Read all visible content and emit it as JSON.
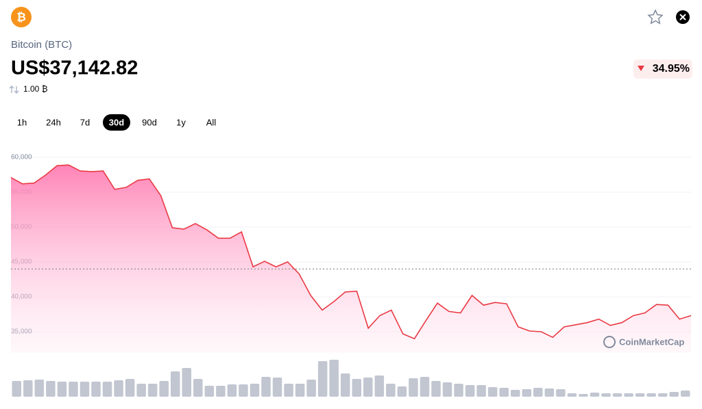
{
  "header": {
    "icon": "₿",
    "coin": "Bitcoin (BTC)",
    "price": "US$37,142.82",
    "amount": "1.00 ₿",
    "change": "34.95%"
  },
  "tabs": [
    "1h",
    "24h",
    "7d",
    "30d",
    "90d",
    "1y",
    "All"
  ],
  "active_tab": 3,
  "chart_data": {
    "type": "area",
    "watermark": "CoinMarketCap",
    "ylim": [
      32000,
      60000
    ],
    "yticks": [
      {
        "value": 35000,
        "label": "35,000"
      },
      {
        "value": 40000,
        "label": "40,000"
      },
      {
        "value": 45000,
        "label": "45,000"
      },
      {
        "value": 50000,
        "label": "50,000"
      },
      {
        "value": 55000,
        "label": "55,000"
      },
      {
        "value": 60000,
        "label": "60,000"
      }
    ],
    "grid": true,
    "reference": 44000,
    "series": [
      {
        "color": "#ea3943",
        "values": [
          57100,
          56200,
          56300,
          57450,
          58800,
          58900,
          58050,
          57950,
          58050,
          55400,
          55700,
          56700,
          56900,
          54500,
          49900,
          49700,
          50500,
          49600,
          48400,
          48400,
          49300,
          44300,
          45100,
          44300,
          45000,
          43300,
          40200,
          38100,
          39300,
          40700,
          40800,
          35500,
          37300,
          38100,
          34700,
          34000,
          36600,
          39100,
          37900,
          37700,
          40200,
          38800,
          39200,
          39000,
          35700,
          35100,
          35000,
          34200,
          35700,
          36000,
          36300,
          36800,
          35900,
          36300,
          37300,
          37700,
          38900,
          38800,
          36800,
          37300
        ]
      }
    ],
    "volume": {
      "color": "#c1c6d1",
      "ylim": [
        0,
        60
      ],
      "values": [
        23,
        24,
        25,
        23,
        22,
        22,
        22,
        22,
        22,
        24,
        26,
        19,
        19,
        23,
        37,
        42,
        26,
        16,
        16,
        18,
        18,
        19,
        29,
        28,
        19,
        19,
        25,
        52,
        54,
        34,
        26,
        28,
        31,
        19,
        15,
        27,
        29,
        23,
        21,
        19,
        17,
        17,
        14,
        13,
        10,
        11,
        13,
        12,
        11,
        5,
        4,
        6,
        5,
        5,
        5,
        5,
        5,
        5,
        7,
        9
      ]
    }
  }
}
